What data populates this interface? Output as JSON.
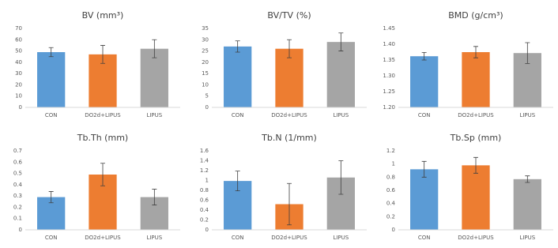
{
  "chart_data": [
    {
      "type": "bar",
      "title": "BV (mm³)",
      "categories": [
        "CON",
        "DO2d+LIPUS",
        "LIPUS"
      ],
      "values": [
        49,
        47,
        52
      ],
      "errors": [
        4,
        8,
        8
      ],
      "colors": [
        "#5b9bd5",
        "#ed7d31",
        "#a5a5a5"
      ],
      "ylim": [
        0,
        70
      ],
      "yticks": [
        0,
        10,
        20,
        30,
        40,
        50,
        60,
        70
      ]
    },
    {
      "type": "bar",
      "title": "BV/TV (%)",
      "categories": [
        "CON",
        "DO2d+LIPUS",
        "LIPUS"
      ],
      "values": [
        27,
        26,
        29
      ],
      "errors": [
        2.5,
        4,
        4
      ],
      "colors": [
        "#5b9bd5",
        "#ed7d31",
        "#a5a5a5"
      ],
      "ylim": [
        0,
        35
      ],
      "yticks": [
        0,
        5,
        10,
        15,
        20,
        25,
        30,
        35
      ]
    },
    {
      "type": "bar",
      "title": "BMD (g/cm³)",
      "categories": [
        "CON",
        "DO2d+LIPUS",
        "LIPUS"
      ],
      "values": [
        1.362,
        1.375,
        1.372
      ],
      "errors": [
        0.012,
        0.018,
        0.033
      ],
      "colors": [
        "#5b9bd5",
        "#ed7d31",
        "#a5a5a5"
      ],
      "ylim": [
        1.2,
        1.45
      ],
      "yticks": [
        {
          "value": 1.2,
          "label": "1.20"
        },
        1.25,
        {
          "value": 1.3,
          "label": "1.30"
        },
        1.35,
        {
          "value": 1.4,
          "label": "1.40"
        },
        1.45
      ]
    },
    {
      "type": "bar",
      "title": "Tb.Th (mm)",
      "categories": [
        "CON",
        "DO2d+LIPUS",
        "LIPUS"
      ],
      "values": [
        0.29,
        0.49,
        0.29
      ],
      "errors": [
        0.05,
        0.1,
        0.07
      ],
      "colors": [
        "#5b9bd5",
        "#ed7d31",
        "#a5a5a5"
      ],
      "ylim": [
        0,
        0.7
      ],
      "yticks": [
        0,
        0.1,
        0.2,
        0.3,
        0.4,
        0.5,
        0.6,
        0.7
      ]
    },
    {
      "type": "bar",
      "title": "Tb.N (1/mm)",
      "categories": [
        "CON",
        "DO2d+LIPUS",
        "LIPUS"
      ],
      "values": [
        0.99,
        0.52,
        1.06
      ],
      "errors": [
        0.2,
        0.42,
        0.34
      ],
      "colors": [
        "#5b9bd5",
        "#ed7d31",
        "#a5a5a5"
      ],
      "ylim": [
        0,
        1.6
      ],
      "yticks": [
        0,
        0.2,
        0.4,
        0.6,
        0.8,
        1,
        1.2,
        1.4,
        1.6
      ]
    },
    {
      "type": "bar",
      "title": "Tb.Sp (mm)",
      "categories": [
        "CON",
        "DO2d+LIPUS",
        "LIPUS"
      ],
      "values": [
        0.92,
        0.98,
        0.77
      ],
      "errors": [
        0.12,
        0.12,
        0.05
      ],
      "colors": [
        "#5b9bd5",
        "#ed7d31",
        "#a5a5a5"
      ],
      "ylim": [
        0,
        1.2
      ],
      "yticks": [
        0,
        0.2,
        0.4,
        0.6,
        0.8,
        1,
        1.2
      ]
    }
  ]
}
